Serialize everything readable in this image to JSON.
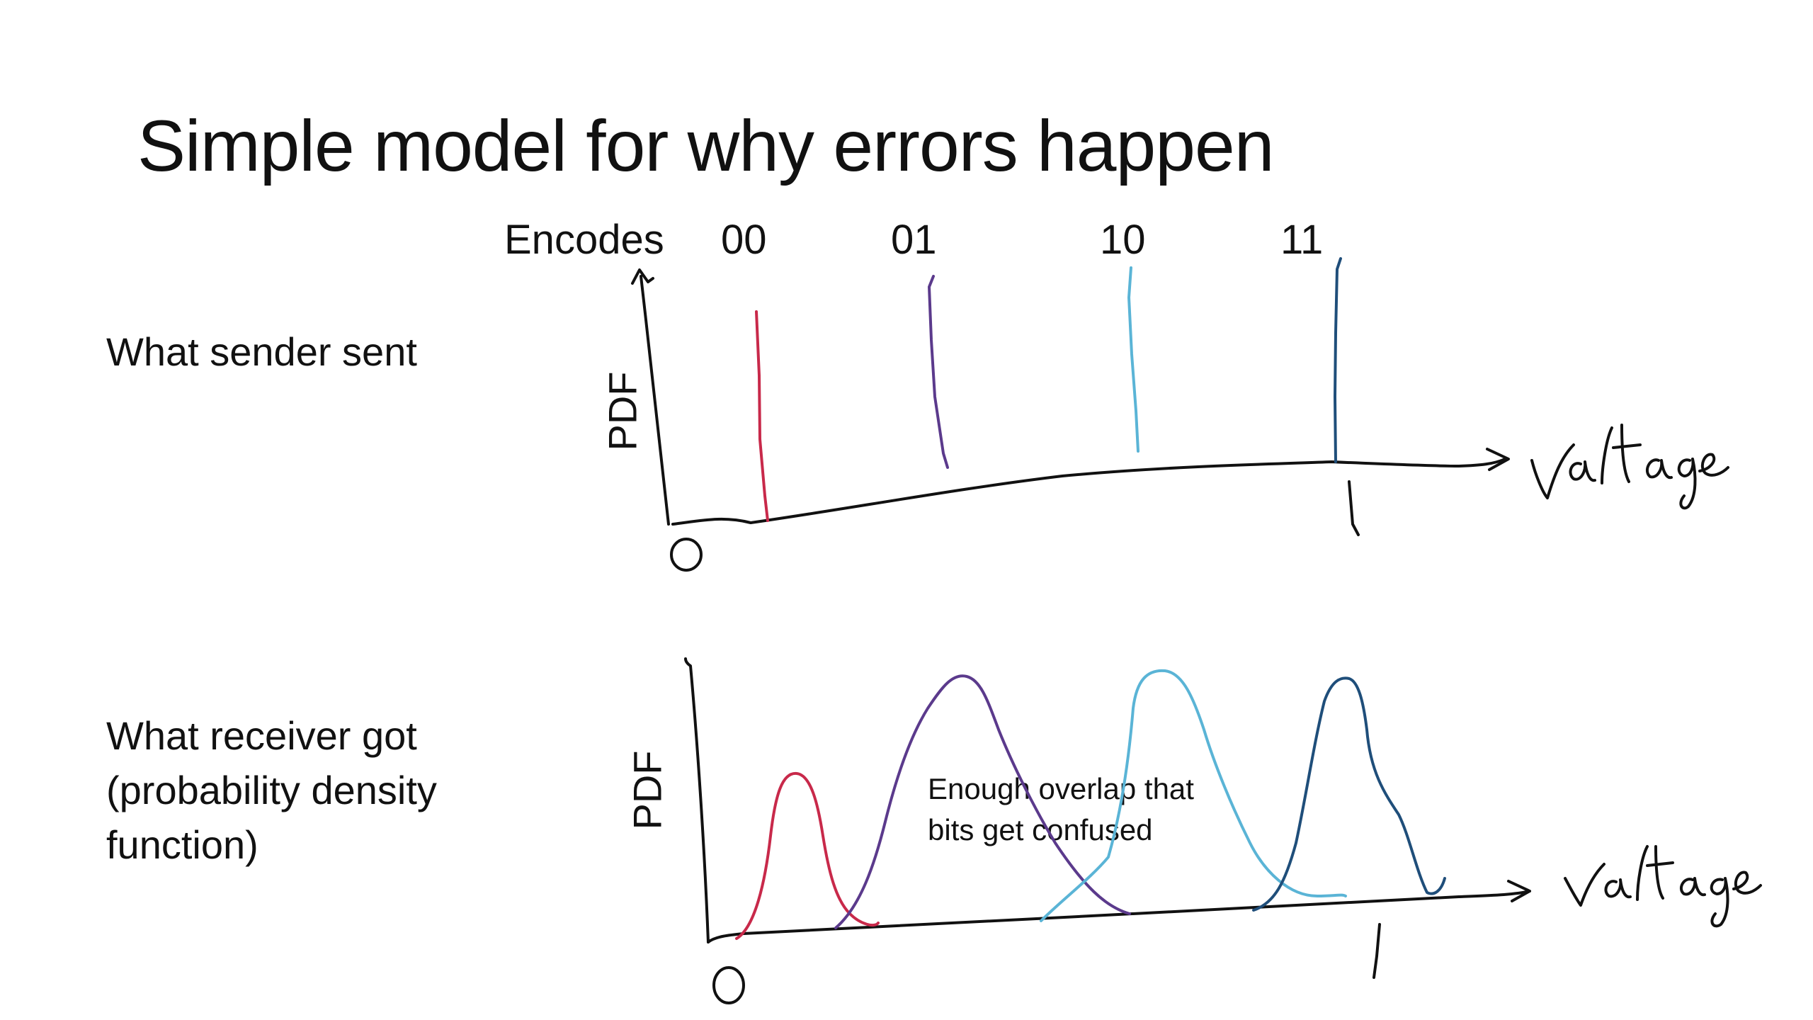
{
  "slide": {
    "title": "Simple model for why errors happen",
    "sender_label": "What sender sent",
    "receiver_label_lines": [
      "What receiver got",
      "(probability density",
      "function)"
    ],
    "encodes_label": "Encodes",
    "codes": [
      {
        "text": "00",
        "color": "#c8294a"
      },
      {
        "text": "01",
        "color": "#5b3a8c"
      },
      {
        "text": "10",
        "color": "#5ab4d6"
      },
      {
        "text": "11",
        "color": "#1f4e7a"
      }
    ],
    "y_axis_label": "PDF",
    "x_axis_label_handwritten": "voltage",
    "x_min_handwritten": "0",
    "x_max_handwritten": "1",
    "overlap_note_lines": [
      "Enough overlap that",
      "bits get confused"
    ]
  }
}
